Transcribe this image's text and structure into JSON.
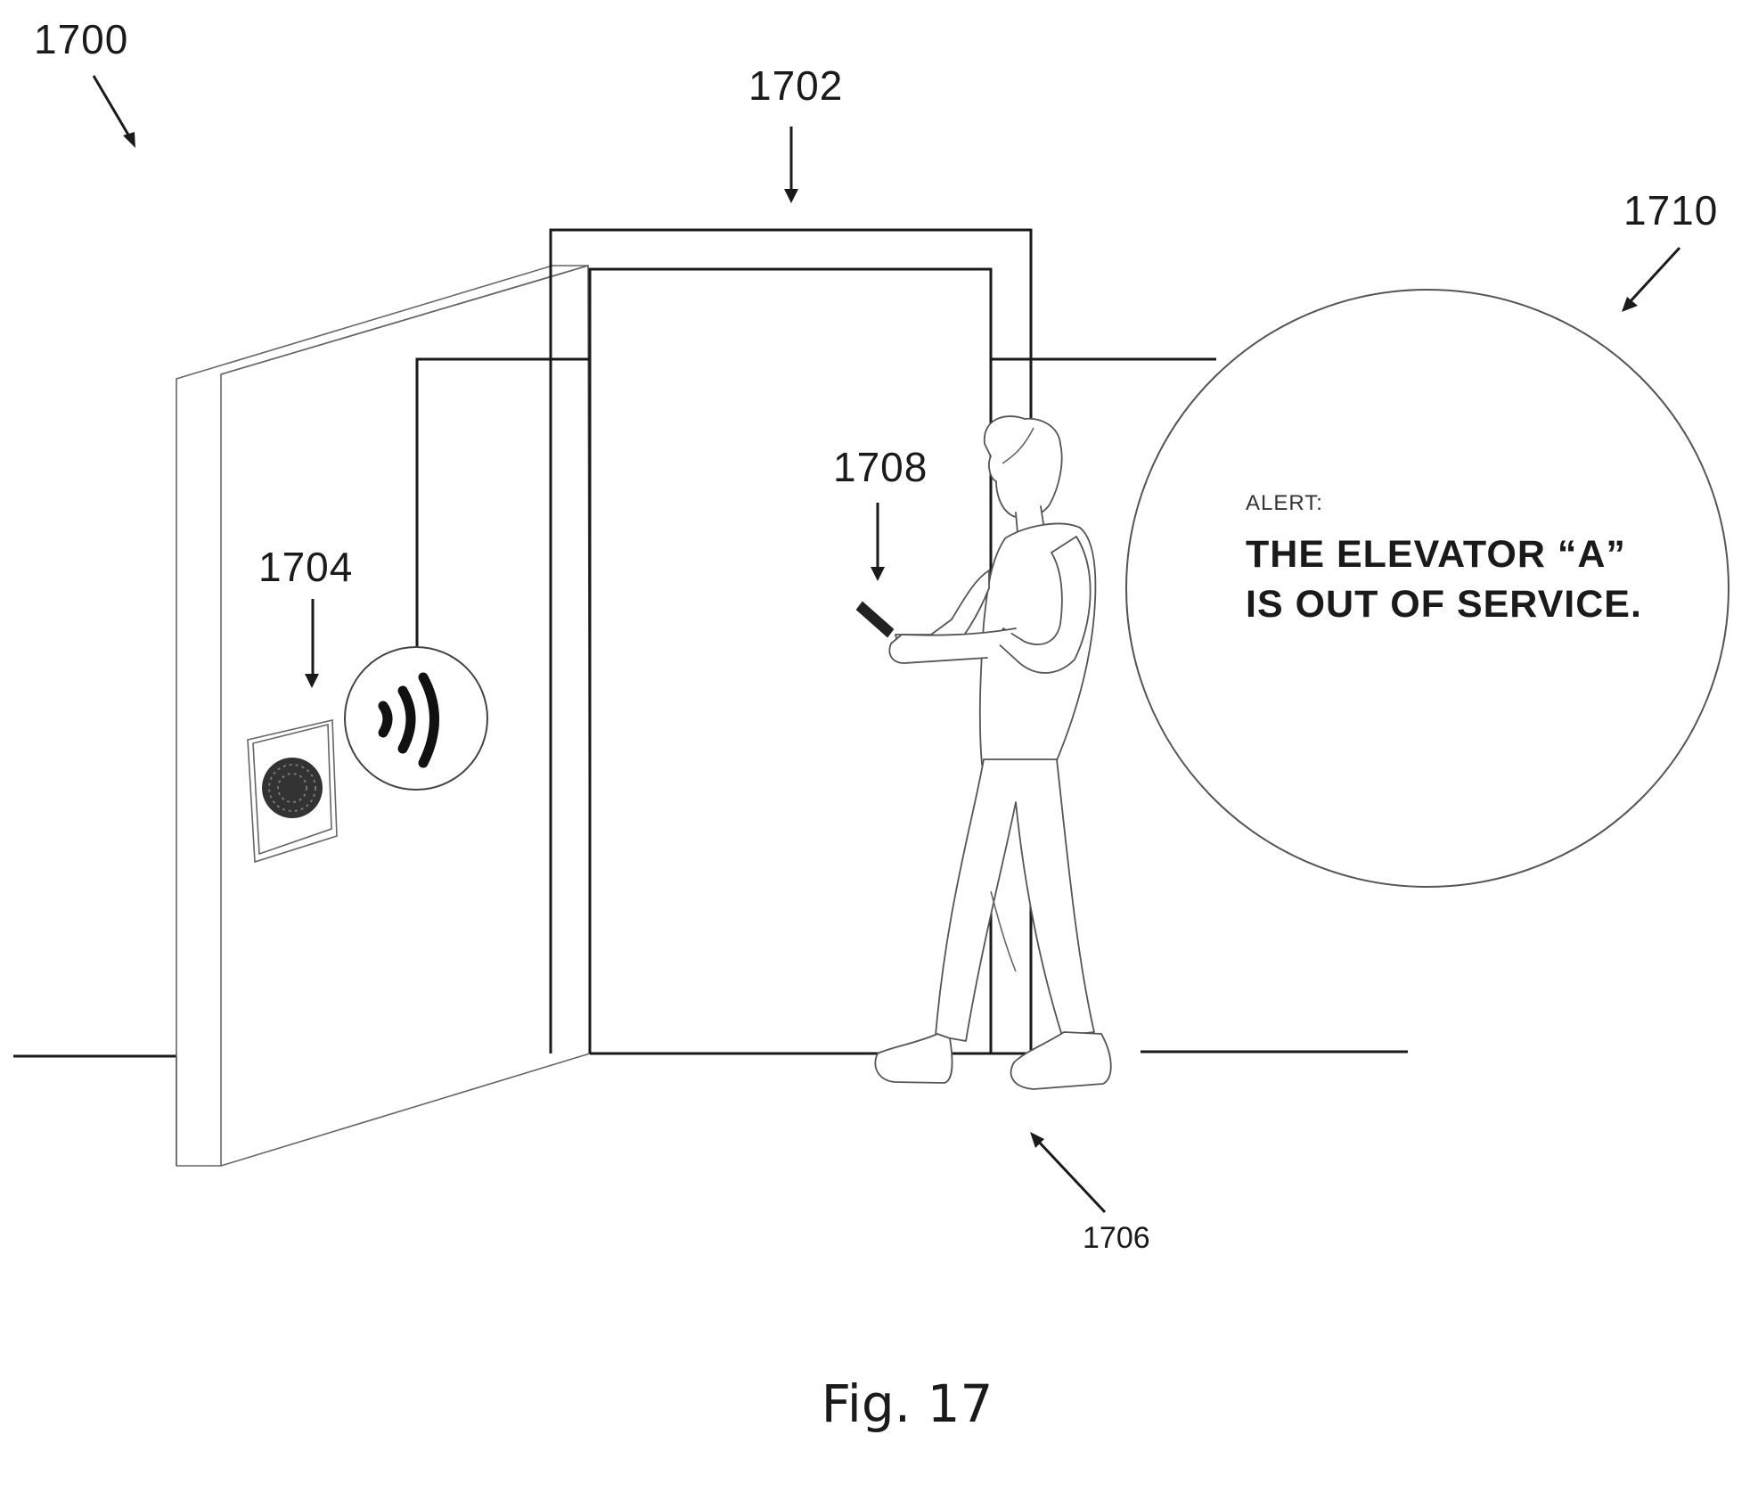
{
  "figure": {
    "caption": "Fig. 17",
    "labels": {
      "system": "1700",
      "elevator_door": "1702",
      "reader": "1704",
      "person": "1706",
      "device": "1708",
      "alert_bubble": "1710"
    },
    "alert": {
      "heading": "ALERT:",
      "line1": "THE ELEVATOR “A”",
      "line2": "IS OUT OF SERVICE."
    }
  }
}
